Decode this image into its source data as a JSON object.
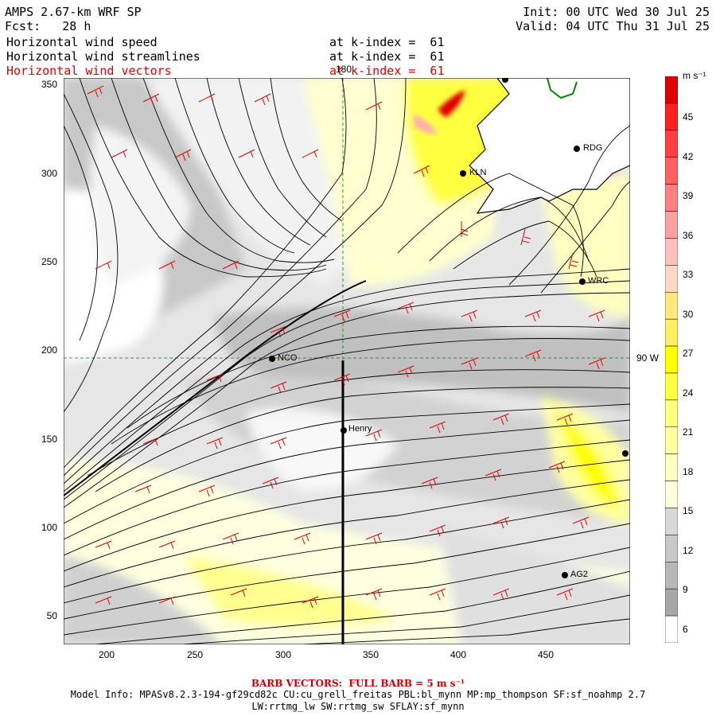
{
  "header": {
    "model": "AMPS 2.67-km WRF SP",
    "forecast": "Fcst:   28 h",
    "init": "Init: 00 UTC Wed 30 Jul 25",
    "valid": "Valid: 04 UTC Thu 31 Jul 25",
    "fields": [
      {
        "name": "Horizontal wind speed",
        "level": "at k-index =  61",
        "color": "#000000"
      },
      {
        "name": "Horizontal wind streamlines",
        "level": "at k-index =  61",
        "color": "#000000"
      },
      {
        "name": "Horizontal wind vectors",
        "level": "at k-index =  61",
        "color": "#e00000"
      }
    ]
  },
  "axes": {
    "x_ticks": [
      "200",
      "250",
      "300",
      "350",
      "400",
      "450"
    ],
    "y_ticks": [
      "350",
      "300",
      "250",
      "200",
      "150",
      "100",
      "50"
    ],
    "meridian_label": "180",
    "parallel_label": "90 W"
  },
  "colorbar": {
    "unit": "m s⁻¹",
    "ticks": [
      "45",
      "42",
      "39",
      "36",
      "33",
      "30",
      "27",
      "24",
      "21",
      "18",
      "15",
      "12",
      "9",
      "6"
    ],
    "colors": [
      "#e00000",
      "#ff2020",
      "#ff4040",
      "#ff6060",
      "#ff8080",
      "#ffa0a0",
      "#ffc0c0",
      "#ffd8c8",
      "#ffe880",
      "#fff060",
      "#ffff00",
      "#ffff40",
      "#ffff80",
      "#ffffa0",
      "#ffffc0",
      "#ffffe0",
      "#d8d8d8",
      "#c8c8c8",
      "#b8b8b8",
      "#a8a8a8",
      "#ffffff"
    ]
  },
  "stations": [
    {
      "name": "KLN"
    },
    {
      "name": "RDG"
    },
    {
      "name": "WRC"
    },
    {
      "name": "NCO"
    },
    {
      "name": "Henry"
    },
    {
      "name": "AG2"
    }
  ],
  "footer": {
    "barb_note": "BARB VECTORS:  FULL BARB = 5 m s⁻¹",
    "model_info": "Model Info: MPASv8.2.3-194-gf29cd82c CU:cu_grell_freitas PBL:bl_mynn MP:mp_thompson SF:sf_noahmp 2.7",
    "model_info2": "LW:rrtmg_lw SW:rrtmg_sw SFLAY:sf_mynn"
  }
}
